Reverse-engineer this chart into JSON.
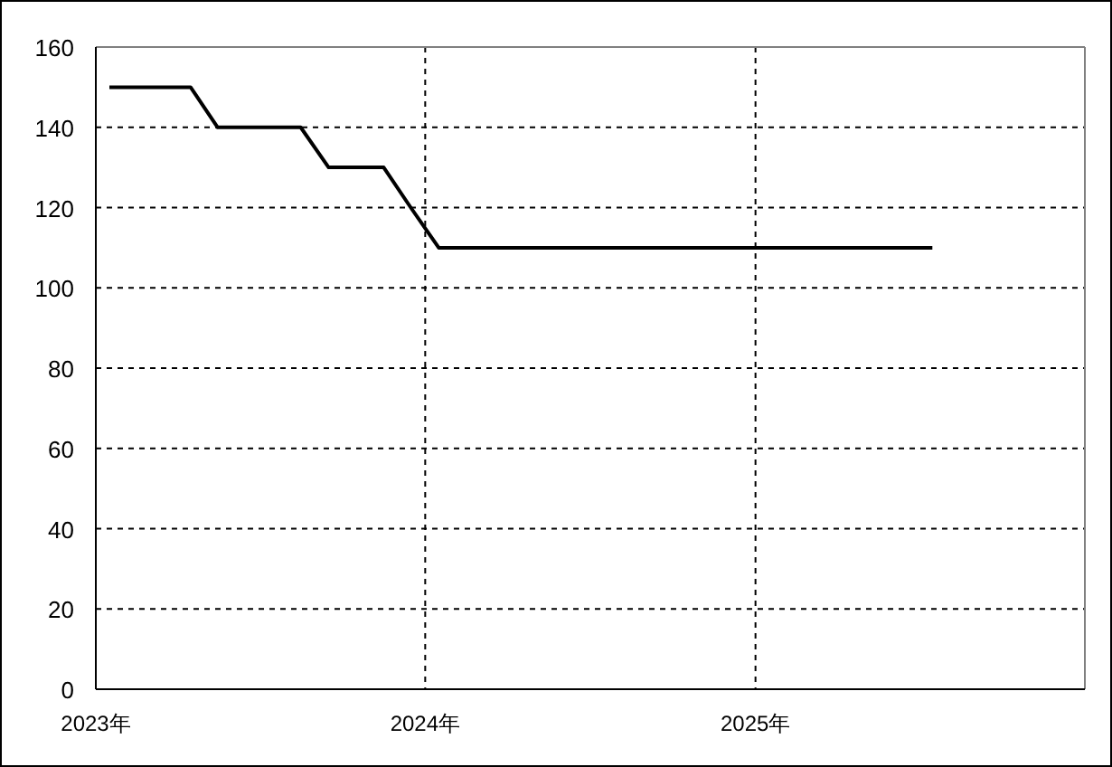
{
  "chart_data": {
    "type": "line",
    "x": [
      "2023-01-16",
      "2023-02-16",
      "2023-03-16",
      "2023-04-16",
      "2023-05-16",
      "2023-06-16",
      "2023-07-16",
      "2023-08-16",
      "2023-09-16",
      "2023-10-16",
      "2023-11-16",
      "2023-12-16",
      "2024-01-16",
      "2024-02-16",
      "2024-03-16",
      "2024-04-16",
      "2024-05-16",
      "2024-06-16",
      "2024-07-16",
      "2024-08-16",
      "2024-09-16",
      "2024-10-16",
      "2024-11-16",
      "2024-12-16",
      "2025-01-16",
      "2025-02-16",
      "2025-03-16",
      "2025-04-16",
      "2025-05-16",
      "2025-06-16",
      "2025-07-16"
    ],
    "series": [
      {
        "color": "#000000",
        "values": [
          150,
          150,
          150,
          150,
          140,
          140,
          140,
          140,
          130,
          130,
          130,
          120,
          110,
          110,
          110,
          110,
          110,
          110,
          110,
          110,
          110,
          110,
          110,
          110,
          110,
          110,
          110,
          110,
          110,
          110,
          110
        ]
      }
    ],
    "xlim": [
      "2023-01-01",
      "2026-01-01"
    ],
    "xticks": [
      {
        "value": "2023-01-01",
        "label": "2023年"
      },
      {
        "value": "2024-01-01",
        "label": "2024年"
      },
      {
        "value": "2025-01-01",
        "label": "2025年"
      }
    ],
    "ylim": [
      0,
      160
    ],
    "yticks": [
      0,
      20,
      40,
      60,
      80,
      100,
      120,
      140,
      160
    ],
    "grid": true,
    "line_style": "solid",
    "marker": "none"
  }
}
